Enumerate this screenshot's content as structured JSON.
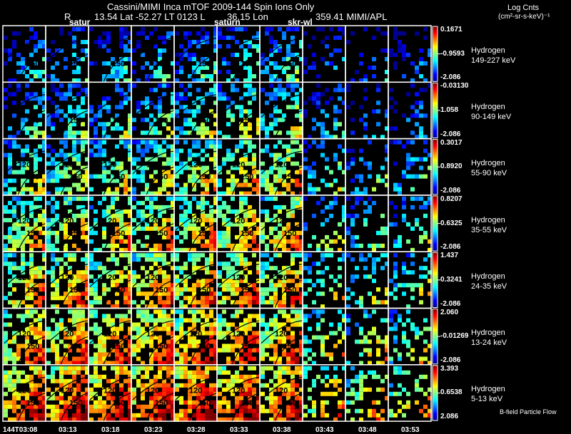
{
  "header": {
    "title": "Cassini/MIMI Inca mTOF  2009-144   Spin   Ions Only",
    "subtitle_r": "R",
    "subtitle_rest": "13.54 Lat -52.27 LT 0123 L",
    "subtitle_lon": "36.15 Lon",
    "subtitle_mimi": "359.41   MIMI/APL",
    "body_labels": [
      "satur",
      "saturn",
      "skr-wl"
    ],
    "units_line1": "Log Cnts",
    "units_line2": "(cm²-sr-s-keV)⁻¹"
  },
  "footer": {
    "bfield_label": "B-field Particle Flow"
  },
  "colors": {
    "background": "#000000",
    "grid_lines": "#ffffff",
    "contour": "#000000",
    "colormap": [
      "#00008f",
      "#0000ff",
      "#0080ff",
      "#00ffff",
      "#80ff80",
      "#ffff00",
      "#ff8000",
      "#ff0000",
      "#800000"
    ]
  },
  "chart_data": {
    "type": "heatmap",
    "title": "Cassini/MIMI Inca mTOF  2009-144   Spin   Ions Only",
    "x_ticks": [
      "144T03:08",
      "03:13",
      "03:18",
      "03:23",
      "03:28",
      "03:33",
      "03:38",
      "03:43",
      "03:48",
      "03:53"
    ],
    "contour_labels": [
      "120",
      "150"
    ],
    "colorbar_label": "Log Cnts (cm²-sr-s-keV)⁻¹",
    "rows": [
      {
        "species": "Hydrogen",
        "energy": "149-227 keV",
        "cb_max": "0.1671",
        "cb_mid": "-0.9593",
        "cb_min": "-2.086",
        "intensity": [
          0.22,
          0.24,
          0.2,
          0.22,
          0.26,
          0.3,
          0.3,
          0.12,
          0.1,
          0.1
        ]
      },
      {
        "species": "Hydrogen",
        "energy": "90-149 keV",
        "cb_max": "-0.03130",
        "cb_mid": "1.058",
        "cb_min": "-2.086",
        "intensity": [
          0.28,
          0.3,
          0.3,
          0.32,
          0.38,
          0.42,
          0.4,
          0.2,
          0.14,
          0.14
        ]
      },
      {
        "species": "Hydrogen",
        "energy": "55-90 keV",
        "cb_max": "0.3017",
        "cb_mid": "0.8920",
        "cb_min": "-2.086",
        "intensity": [
          0.42,
          0.44,
          0.45,
          0.46,
          0.5,
          0.55,
          0.55,
          0.35,
          0.3,
          0.3
        ]
      },
      {
        "species": "Hydrogen",
        "energy": "35-55 keV",
        "cb_max": "0.8207",
        "cb_mid": "0.6325",
        "cb_min": "-2.086",
        "intensity": [
          0.52,
          0.54,
          0.55,
          0.56,
          0.58,
          0.6,
          0.6,
          0.4,
          0.35,
          0.35
        ]
      },
      {
        "species": "Hydrogen",
        "energy": "24-35 keV",
        "cb_max": "1.437",
        "cb_mid": "0.3241",
        "cb_min": "-2.086",
        "intensity": [
          0.58,
          0.6,
          0.6,
          0.62,
          0.64,
          0.64,
          0.62,
          0.45,
          0.42,
          0.42
        ]
      },
      {
        "species": "Hydrogen",
        "energy": "13-24 keV",
        "cb_max": "2.060",
        "cb_mid": "-0.01269",
        "cb_min": "-2.086",
        "intensity": [
          0.64,
          0.66,
          0.66,
          0.68,
          0.7,
          0.7,
          0.66,
          0.5,
          0.48,
          0.46
        ]
      },
      {
        "species": "Hydrogen",
        "energy": "5-13 keV",
        "cb_max": "3.393",
        "cb_mid": "0.6538",
        "cb_min": "2.086",
        "intensity": [
          0.74,
          0.76,
          0.76,
          0.78,
          0.78,
          0.76,
          0.72,
          0.58,
          0.56,
          0.56
        ]
      }
    ]
  }
}
